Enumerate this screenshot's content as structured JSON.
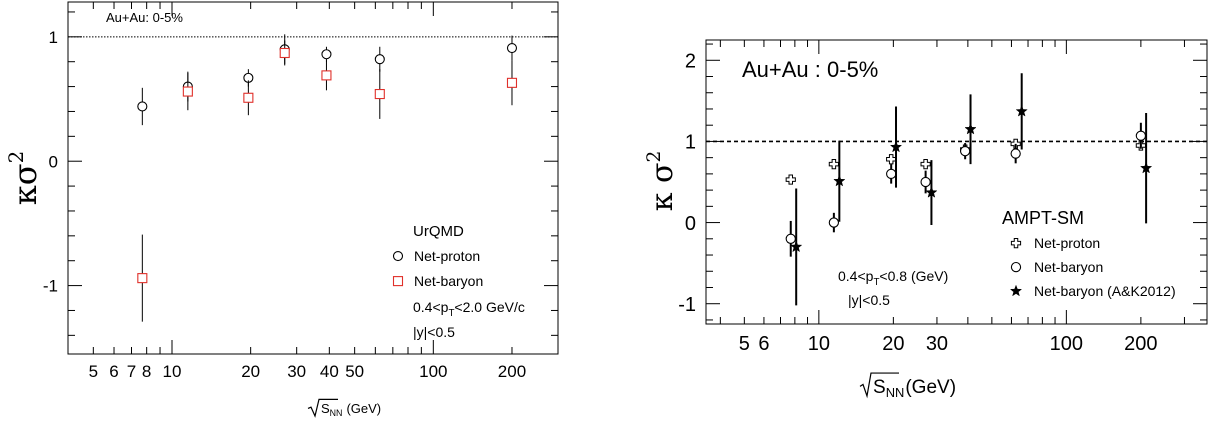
{
  "chart_data": [
    {
      "type": "scatter",
      "xscale": "log",
      "xlim": [
        4,
        300
      ],
      "ylim": [
        -1.55,
        1.28
      ],
      "ylabel_main": "κσ",
      "ylabel_sup": "2",
      "xlabel_main": "S",
      "xlabel_sub": "NN",
      "xlabel_unit": "(GeV)",
      "xticks": [
        5,
        6,
        7,
        8,
        10,
        20,
        30,
        40,
        50,
        100,
        200
      ],
      "xtick_labels": [
        "5",
        "6",
        "7",
        "8",
        "10",
        "20",
        "30",
        "40",
        "50",
        "100",
        "200"
      ],
      "yticks": [
        -1,
        0,
        1
      ],
      "ytick_labels": [
        "-1",
        "0",
        "1"
      ],
      "reference_line": 1,
      "annotation_system": "Au+Au: 0-5%",
      "legend_title": "UrQMD",
      "cuts_pt_main": "0.4<p",
      "cuts_pt_sub": "T",
      "cuts_pt_rest": "<2.0 GeV/c",
      "cuts_y": "|y|<0.5",
      "series": [
        {
          "name": "Net-proton",
          "marker": "open-circle",
          "color": "#000000",
          "points": [
            {
              "x": 7.7,
              "y": 0.44,
              "err": 0.15
            },
            {
              "x": 11.5,
              "y": 0.6,
              "err": 0.12
            },
            {
              "x": 19.6,
              "y": 0.67,
              "err": 0.07
            },
            {
              "x": 27,
              "y": 0.9,
              "err": 0.12
            },
            {
              "x": 39,
              "y": 0.86,
              "err": 0.06
            },
            {
              "x": 62.4,
              "y": 0.82,
              "err": 0.1
            },
            {
              "x": 200,
              "y": 0.91,
              "err": 0.1
            }
          ]
        },
        {
          "name": "Net-baryon",
          "marker": "open-square",
          "color": "#e0302a",
          "points": [
            {
              "x": 7.7,
              "y": -0.94,
              "err": 0.35
            },
            {
              "x": 11.5,
              "y": 0.56,
              "err": 0.15
            },
            {
              "x": 19.6,
              "y": 0.51,
              "err": 0.14
            },
            {
              "x": 27,
              "y": 0.87,
              "err": 0.1
            },
            {
              "x": 39,
              "y": 0.69,
              "err": 0.12
            },
            {
              "x": 62.4,
              "y": 0.54,
              "err": 0.2
            },
            {
              "x": 200,
              "y": 0.63,
              "err": 0.18
            }
          ]
        }
      ]
    },
    {
      "type": "scatter",
      "xscale": "log",
      "xlim": [
        3.5,
        370
      ],
      "ylim": [
        -1.25,
        2.25
      ],
      "ylabel_main": "κ σ",
      "ylabel_sup": "2",
      "xlabel_main": "S",
      "xlabel_sub": "NN",
      "xlabel_unit": "(GeV)",
      "xticks": [
        5,
        6,
        10,
        20,
        30,
        100,
        200
      ],
      "xtick_labels": [
        "5",
        "6",
        "10",
        "20",
        "30",
        "100",
        "200"
      ],
      "yticks": [
        -1,
        0,
        1,
        2
      ],
      "ytick_labels": [
        "-1",
        "0",
        "1",
        "2"
      ],
      "reference_line": 1,
      "annotation_system": "Au+Au : 0-5%",
      "legend_title": "AMPT-SM",
      "cuts_pt_main": "0.4<p",
      "cuts_pt_sub": "T",
      "cuts_pt_rest": "<0.8 (GeV)",
      "cuts_y": "|y|<0.5",
      "series": [
        {
          "name": "Net-proton",
          "marker": "open-cross",
          "color": "#000000",
          "points": [
            {
              "x": 7.7,
              "y": 0.53,
              "err": 0.04
            },
            {
              "x": 11.5,
              "y": 0.72,
              "err": 0.05
            },
            {
              "x": 19.6,
              "y": 0.78,
              "err": 0.05
            },
            {
              "x": 27,
              "y": 0.72,
              "err": 0.04
            },
            {
              "x": 39,
              "y": 0.9,
              "err": 0.04
            },
            {
              "x": 62.4,
              "y": 0.97,
              "err": 0.05
            },
            {
              "x": 200,
              "y": 0.95,
              "err": 0.06
            }
          ]
        },
        {
          "name": "Net-baryon",
          "marker": "open-circle",
          "color": "#000000",
          "points": [
            {
              "x": 7.7,
              "y": -0.2,
              "err": 0.22
            },
            {
              "x": 11.5,
              "y": 0.0,
              "err": 0.12
            },
            {
              "x": 19.6,
              "y": 0.6,
              "err": 0.12
            },
            {
              "x": 27,
              "y": 0.5,
              "err": 0.14
            },
            {
              "x": 39,
              "y": 0.88,
              "err": 0.1
            },
            {
              "x": 62.4,
              "y": 0.85,
              "err": 0.12
            },
            {
              "x": 200,
              "y": 1.07,
              "err": 0.16
            }
          ]
        },
        {
          "name": "Net-baryon (A&K2012)",
          "marker": "star",
          "color": "#000000",
          "points": [
            {
              "x": 8.1,
              "y": -0.3,
              "err": 0.72
            },
            {
              "x": 12.1,
              "y": 0.51,
              "err": 0.5
            },
            {
              "x": 20.5,
              "y": 0.93,
              "err": 0.5
            },
            {
              "x": 28.5,
              "y": 0.37,
              "err": 0.4
            },
            {
              "x": 41,
              "y": 1.15,
              "err": 0.43
            },
            {
              "x": 66,
              "y": 1.37,
              "err": 0.47
            },
            {
              "x": 210,
              "y": 0.67,
              "err": 0.68
            }
          ]
        }
      ]
    }
  ]
}
